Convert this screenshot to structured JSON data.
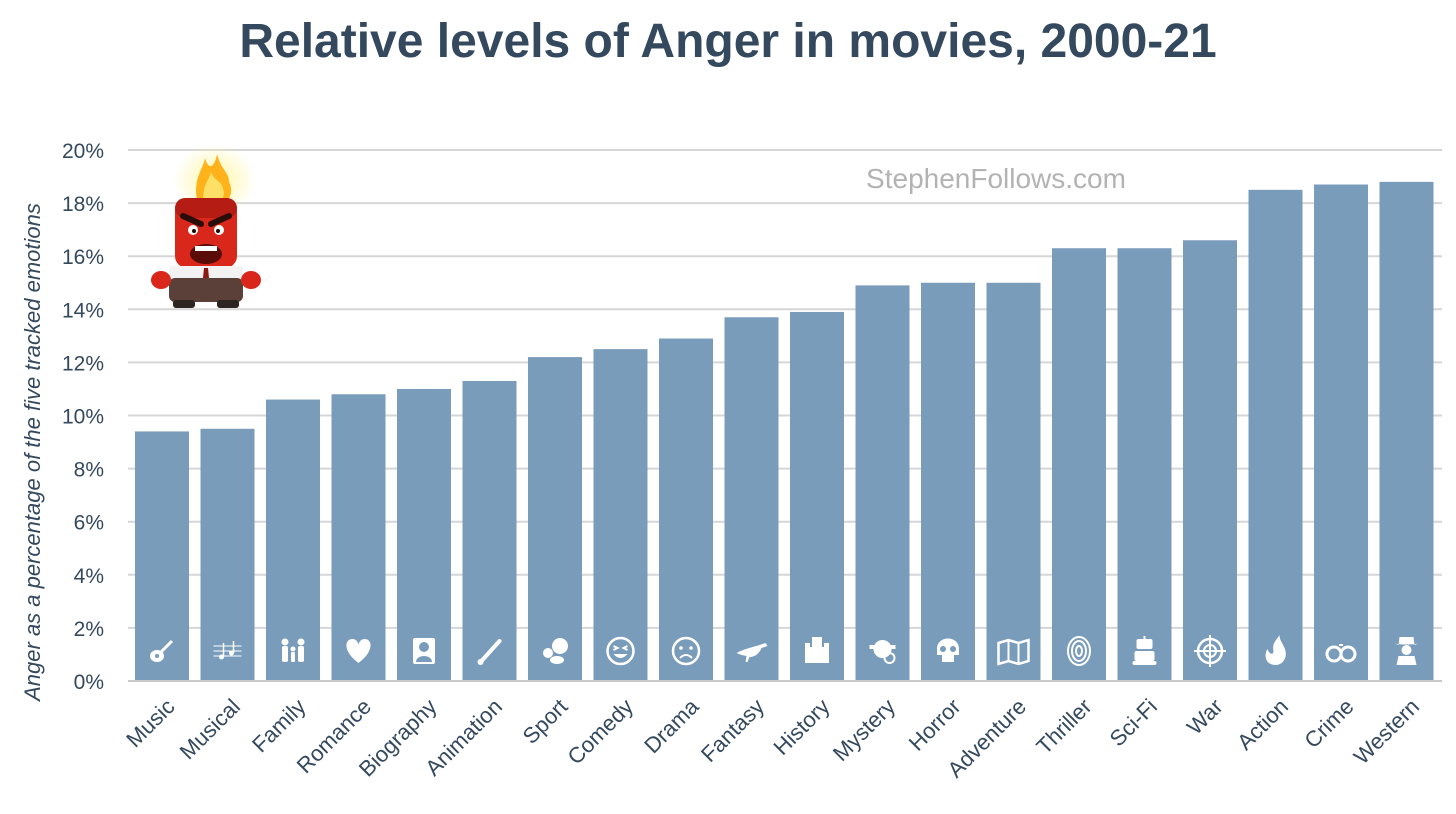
{
  "chart_data": {
    "type": "bar",
    "title": "Relative levels of Anger in movies, 2000-21",
    "xlabel": "",
    "ylabel": "Anger as a percentage of the five tracked emotions",
    "ylim": [
      0,
      20
    ],
    "yticks": [
      0,
      2,
      4,
      6,
      8,
      10,
      12,
      14,
      16,
      18,
      20
    ],
    "ytick_suffix": "%",
    "grid": true,
    "bar_color": "#7a9cbb",
    "categories": [
      "Music",
      "Musical",
      "Family",
      "Romance",
      "Biography",
      "Animation",
      "Sport",
      "Comedy",
      "Drama",
      "Fantasy",
      "History",
      "Mystery",
      "Horror",
      "Adventure",
      "Thriller",
      "Sci-Fi",
      "War",
      "Action",
      "Crime",
      "Western"
    ],
    "values": [
      9.4,
      9.5,
      10.6,
      10.8,
      11.0,
      11.3,
      12.2,
      12.5,
      12.9,
      13.7,
      13.9,
      14.9,
      15.0,
      15.0,
      16.3,
      16.3,
      16.6,
      18.5,
      18.7,
      18.8
    ],
    "icons": [
      "guitar-icon",
      "music-notes-icon",
      "family-icon",
      "heart-icon",
      "person-portrait-icon",
      "paintbrush-icon",
      "sports-balls-icon",
      "laughing-face-icon",
      "sad-face-icon",
      "dinosaur-icon",
      "castle-icon",
      "detective-icon",
      "skull-icon",
      "map-icon",
      "fingerprint-icon",
      "robot-icon",
      "crosshair-icon",
      "fire-icon",
      "handcuffs-icon",
      "cowboy-icon"
    ],
    "watermark": "StephenFollows.com",
    "mascot": "anger-character-image"
  }
}
